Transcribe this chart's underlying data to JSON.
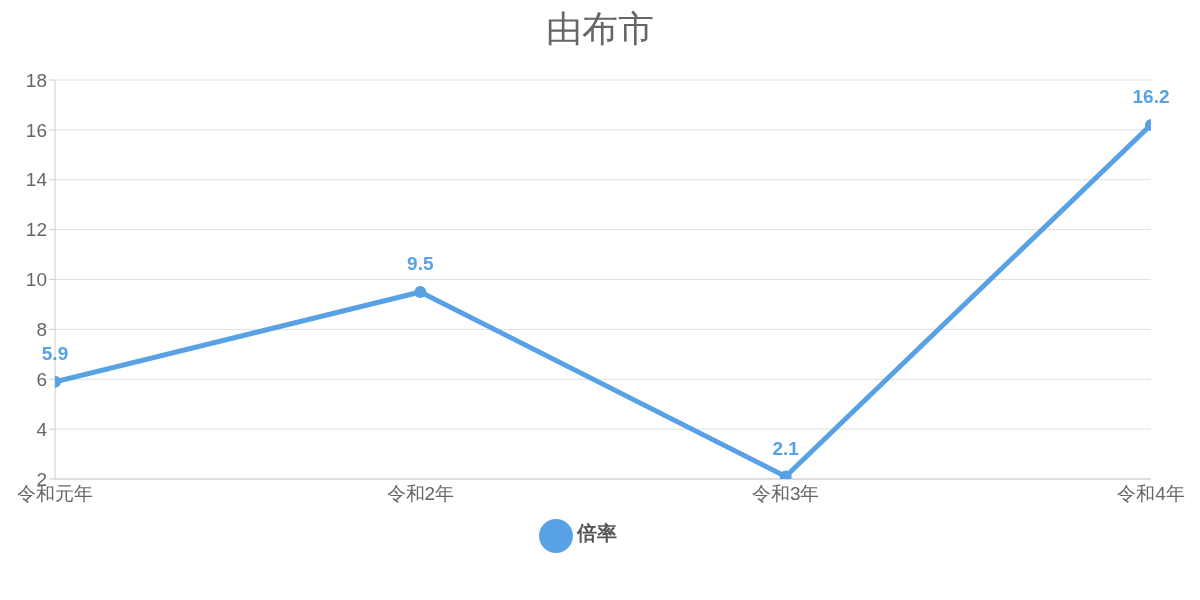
{
  "chart_data": {
    "type": "line",
    "title": "由布市",
    "categories": [
      "令和元年",
      "令和2年",
      "令和3年",
      "令和4年"
    ],
    "series": [
      {
        "name": "倍率",
        "color": "#59a1e5",
        "values": [
          5.9,
          9.5,
          2.1,
          16.2
        ]
      }
    ],
    "ylim": [
      2,
      18
    ],
    "yticks": [
      2,
      4,
      6,
      8,
      10,
      12,
      14,
      16,
      18
    ],
    "grid": "y",
    "legend": "bottom",
    "marker": "circle",
    "line_style": "solid",
    "data_labels": true
  }
}
